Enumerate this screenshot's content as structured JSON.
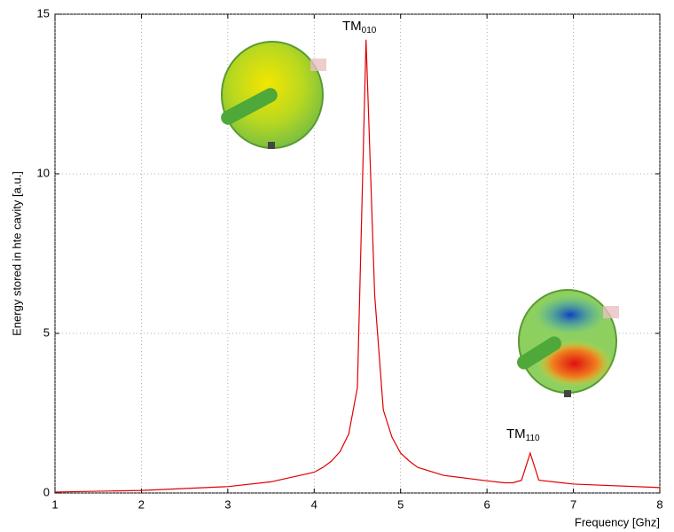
{
  "chart_data": {
    "type": "line",
    "x_label": "Frequency [Ghz]",
    "y_label": "Energy stored in hte cavity [a.u.]",
    "x": [
      1,
      2,
      3,
      3.5,
      4,
      4.1,
      4.2,
      4.3,
      4.4,
      4.5,
      4.6,
      4.7,
      4.8,
      4.9,
      5.0,
      5.1,
      5.2,
      5.5,
      6.0,
      6.2,
      6.3,
      6.4,
      6.5,
      6.6,
      7,
      8
    ],
    "series": [
      {
        "color": "#e00000",
        "values": [
          0.03,
          0.08,
          0.2,
          0.35,
          0.65,
          0.8,
          1.0,
          1.3,
          1.85,
          3.3,
          14.2,
          6.2,
          2.6,
          1.75,
          1.25,
          1.0,
          0.8,
          0.55,
          0.38,
          0.32,
          0.32,
          0.4,
          1.25,
          0.4,
          0.28,
          0.17
        ]
      }
    ],
    "xlim": [
      1,
      8
    ],
    "xticks": [
      1,
      2,
      3,
      4,
      5,
      6,
      7,
      8
    ],
    "ylim": [
      0,
      15
    ],
    "yticks": [
      0,
      5,
      10,
      15
    ],
    "grid": true,
    "annotations": [
      {
        "text": "TM",
        "subscript": "010"
      },
      {
        "text": "TM",
        "subscript": "110"
      }
    ]
  }
}
